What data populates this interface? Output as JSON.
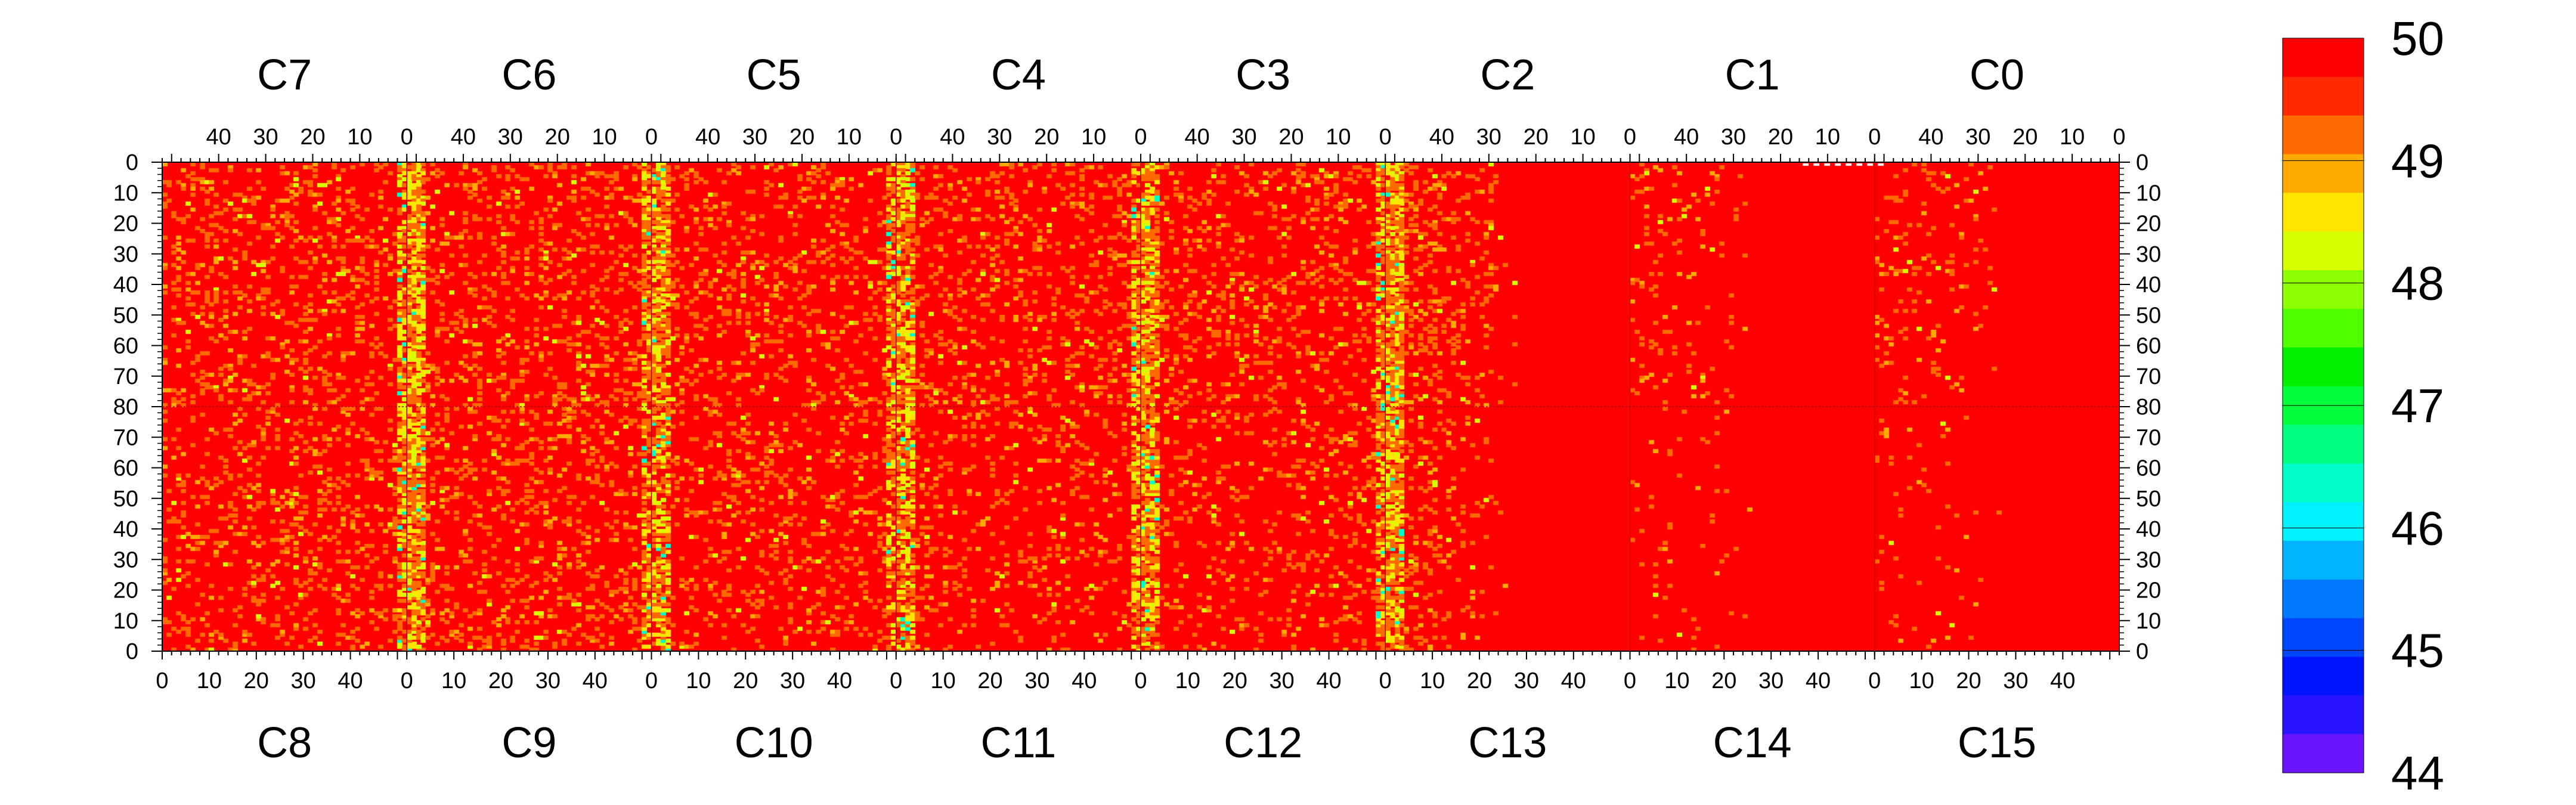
{
  "chart_data": {
    "type": "heatmap",
    "title": "",
    "top_chip_labels": [
      "C7",
      "C6",
      "C5",
      "C4",
      "C3",
      "C2",
      "C1",
      "C0"
    ],
    "bottom_chip_labels": [
      "C8",
      "C9",
      "C10",
      "C11",
      "C12",
      "C13",
      "C14",
      "C15"
    ],
    "top_column_tick_labels": [
      "40",
      "30",
      "20",
      "10",
      "0"
    ],
    "bottom_column_tick_labels": [
      "0",
      "10",
      "20",
      "30",
      "40"
    ],
    "row_tick_labels": [
      "0",
      "10",
      "20",
      "30",
      "40",
      "50",
      "60",
      "70",
      "80",
      "70",
      "60",
      "50",
      "40",
      "30",
      "20",
      "10",
      "0"
    ],
    "columns_per_chip": 52,
    "rows_per_half": 80,
    "value_range": [
      44,
      50
    ],
    "dominant_value": 50,
    "colorbar": {
      "min": 44,
      "max": 50,
      "tick_labels": [
        "50",
        "49",
        "48",
        "47",
        "46",
        "45",
        "44"
      ],
      "colors": [
        "#ff0000",
        "#ff2a00",
        "#ff6a00",
        "#ffaa00",
        "#ffe600",
        "#d7ff00",
        "#8cff00",
        "#50ff00",
        "#00f000",
        "#00ff3a",
        "#00ff80",
        "#00ffc8",
        "#00f0ff",
        "#00b4ff",
        "#0078ff",
        "#0046ff",
        "#0014ff",
        "#2814ff",
        "#6a14ff"
      ]
    },
    "chip_off_value_fraction": {
      "C7": 0.15,
      "C6": 0.15,
      "C5": 0.14,
      "C4": 0.14,
      "C3": 0.14,
      "C2": 0.1,
      "C1": 0.05,
      "C0": 0.07,
      "C8": 0.14,
      "C9": 0.15,
      "C10": 0.12,
      "C11": 0.1,
      "C12": 0.1,
      "C13": 0.07,
      "C14": 0.02,
      "C15": 0.03
    },
    "hot_column_bands": [
      "chip boundary near column 0 of C6/C9",
      "chip boundary near column 0 of C5/C10",
      "chip boundary near column 0 of C4/C11",
      "chip boundary near column 0 of C3/C12",
      "chip boundary near column 0 of C2/C13"
    ]
  }
}
